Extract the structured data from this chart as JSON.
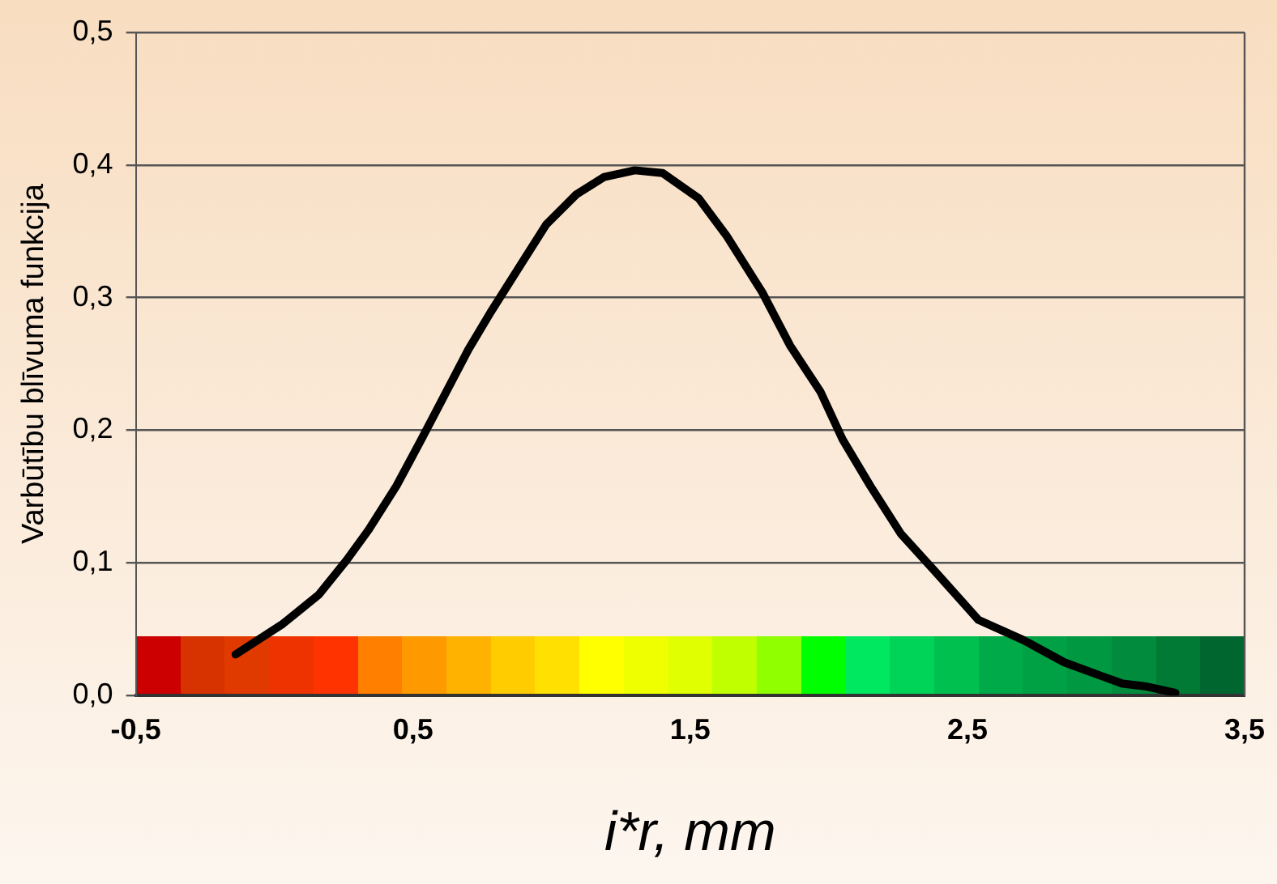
{
  "chart_data": {
    "type": "line",
    "xlabel": "i*r, mm",
    "ylabel": "Varbūtību blīvuma funkcija",
    "x": [
      -0.14,
      0.03,
      0.16,
      0.26,
      0.34,
      0.44,
      0.53,
      0.62,
      0.7,
      0.78,
      0.88,
      0.98,
      1.09,
      1.19,
      1.3,
      1.4,
      1.53,
      1.63,
      1.76,
      1.86,
      1.97,
      2.05,
      2.15,
      2.26,
      2.39,
      2.54,
      2.7,
      2.85,
      2.98,
      3.06,
      3.14,
      3.25
    ],
    "series": [
      {
        "color": "#000000",
        "values": [
          0.031,
          0.054,
          0.076,
          0.102,
          0.125,
          0.158,
          0.193,
          0.229,
          0.261,
          0.289,
          0.322,
          0.355,
          0.378,
          0.391,
          0.396,
          0.394,
          0.375,
          0.347,
          0.304,
          0.264,
          0.229,
          0.193,
          0.158,
          0.122,
          0.092,
          0.057,
          0.042,
          0.025,
          0.015,
          0.009,
          0.007,
          0.002
        ]
      }
    ],
    "xlim": [
      -0.5,
      3.5
    ],
    "xticks": [
      {
        "value": -0.5,
        "label": "-0,5"
      },
      {
        "value": 0.5,
        "label": "0,5"
      },
      {
        "value": 1.5,
        "label": "1,5"
      },
      {
        "value": 2.5,
        "label": "2,5"
      },
      {
        "value": 3.5,
        "label": "3,5"
      }
    ],
    "ylim": [
      0,
      0.5
    ],
    "yticks": [
      {
        "value": 0,
        "label": "0,0"
      },
      {
        "value": 0.1,
        "label": "0,1"
      },
      {
        "value": 0.2,
        "label": "0,2"
      },
      {
        "value": 0.3,
        "label": "0,3"
      },
      {
        "value": 0.4,
        "label": "0,4"
      },
      {
        "value": 0.5,
        "label": "0,5"
      }
    ],
    "grid": "y",
    "legend": false,
    "marker": "none",
    "line_style": "solid"
  }
}
